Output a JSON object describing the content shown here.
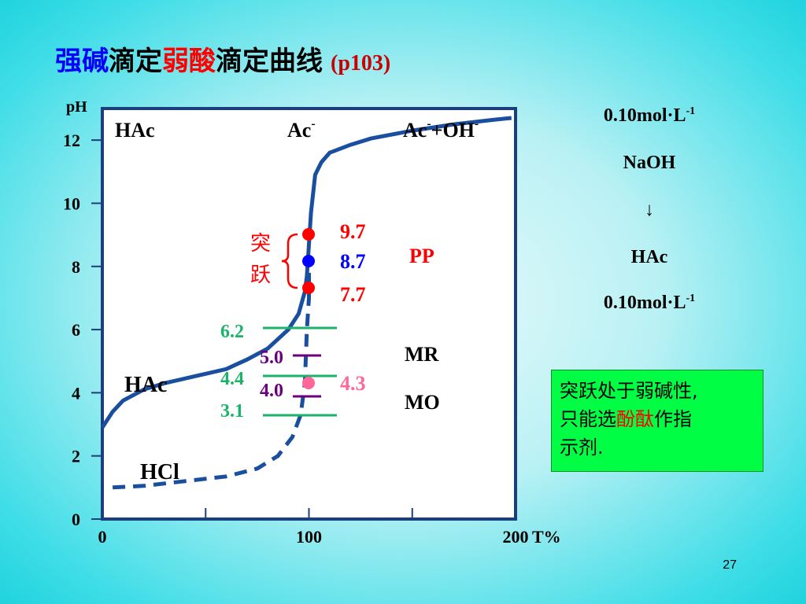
{
  "title": {
    "part1": "强碱",
    "part2": "滴定",
    "part3": "弱酸",
    "part4": "滴定曲线",
    "ref": "(p103)"
  },
  "chart_data": {
    "type": "line",
    "xlabel": "T%",
    "ylabel": "pH",
    "xlim": [
      0,
      200
    ],
    "ylim": [
      0,
      13
    ],
    "x_ticks": [
      {
        "value": 0,
        "label": "0"
      },
      {
        "value": 100,
        "label": "100"
      },
      {
        "value": 200,
        "label": "200"
      }
    ],
    "y_ticks": [
      {
        "value": 0,
        "label": "0"
      },
      {
        "value": 2,
        "label": "2"
      },
      {
        "value": 4,
        "label": "4"
      },
      {
        "value": 6,
        "label": "6"
      },
      {
        "value": 8,
        "label": "8"
      },
      {
        "value": 10,
        "label": "10"
      },
      {
        "value": 12,
        "label": "12"
      }
    ],
    "series": [
      {
        "name": "HAc",
        "style": "solid",
        "color": "#1a4fa0",
        "points": [
          [
            0,
            2.9
          ],
          [
            5,
            3.4
          ],
          [
            10,
            3.75
          ],
          [
            20,
            4.1
          ],
          [
            30,
            4.3
          ],
          [
            40,
            4.45
          ],
          [
            50,
            4.6
          ],
          [
            60,
            4.75
          ],
          [
            65,
            4.9
          ],
          [
            70,
            5.05
          ],
          [
            80,
            5.4
          ],
          [
            90,
            6.0
          ],
          [
            95,
            6.5
          ],
          [
            98,
            7.2
          ],
          [
            99,
            7.7
          ],
          [
            100,
            8.7
          ],
          [
            101,
            9.7
          ],
          [
            103,
            10.9
          ],
          [
            106,
            11.3
          ],
          [
            110,
            11.6
          ],
          [
            120,
            11.85
          ],
          [
            130,
            12.05
          ],
          [
            150,
            12.3
          ],
          [
            170,
            12.5
          ],
          [
            190,
            12.65
          ],
          [
            198,
            12.7
          ]
        ]
      },
      {
        "name": "HCl",
        "style": "dashed",
        "color": "#1a4fa0",
        "points": [
          [
            5,
            1.0
          ],
          [
            20,
            1.05
          ],
          [
            40,
            1.2
          ],
          [
            60,
            1.35
          ],
          [
            75,
            1.6
          ],
          [
            85,
            2.0
          ],
          [
            92,
            2.6
          ],
          [
            96,
            3.3
          ],
          [
            98,
            4.3
          ],
          [
            99,
            6.0
          ],
          [
            100,
            7.0
          ],
          [
            100,
            8.0
          ]
        ]
      }
    ],
    "region_labels": [
      "HAc",
      "Ac-",
      "Ac-+OH-"
    ],
    "curve_labels": [
      "HAc",
      "HCl"
    ],
    "jump": {
      "label": "突跃",
      "points": [
        {
          "value": 9.7,
          "label": "9.7",
          "color": "#ff0000"
        },
        {
          "value": 8.7,
          "label": "8.7",
          "color": "#0000ff"
        },
        {
          "value": 7.7,
          "label": "7.7",
          "color": "#ff0000"
        }
      ]
    },
    "indicators": [
      {
        "name": "PP",
        "color": "#ff0000"
      },
      {
        "name": "MR",
        "color": "#000000",
        "range": [
          4.4,
          6.2
        ],
        "labels": [
          "4.4",
          "6.2"
        ],
        "line_color": "#1bb36a"
      },
      {
        "name": "MO",
        "color": "#000000",
        "range": [
          3.1,
          4.4
        ],
        "labels": [
          "3.1",
          "4.4"
        ],
        "line_color": "#1bb36a"
      }
    ],
    "hcl_marks": [
      {
        "value": 5.0,
        "label": "5.0",
        "color": "#6a0080"
      },
      {
        "value": 4.0,
        "label": "4.0",
        "color": "#6a0080"
      }
    ],
    "hcl_ep": {
      "value": 4.3,
      "label": "4.3",
      "color": "#ff6699"
    }
  },
  "side": {
    "conc_top": "0.10mol·L",
    "conc_top_exp": "-1",
    "titrant": "NaOH",
    "arrow": "↓",
    "analyte": "HAc",
    "conc_bottom": "0.10mol·L",
    "conc_bottom_exp": "-1"
  },
  "note": {
    "line1": "突跃处于弱碱性,",
    "line2a": "只能选",
    "line2b": "酚酞",
    "line2c": "作指",
    "line3": "示剂."
  },
  "page_number": "27"
}
